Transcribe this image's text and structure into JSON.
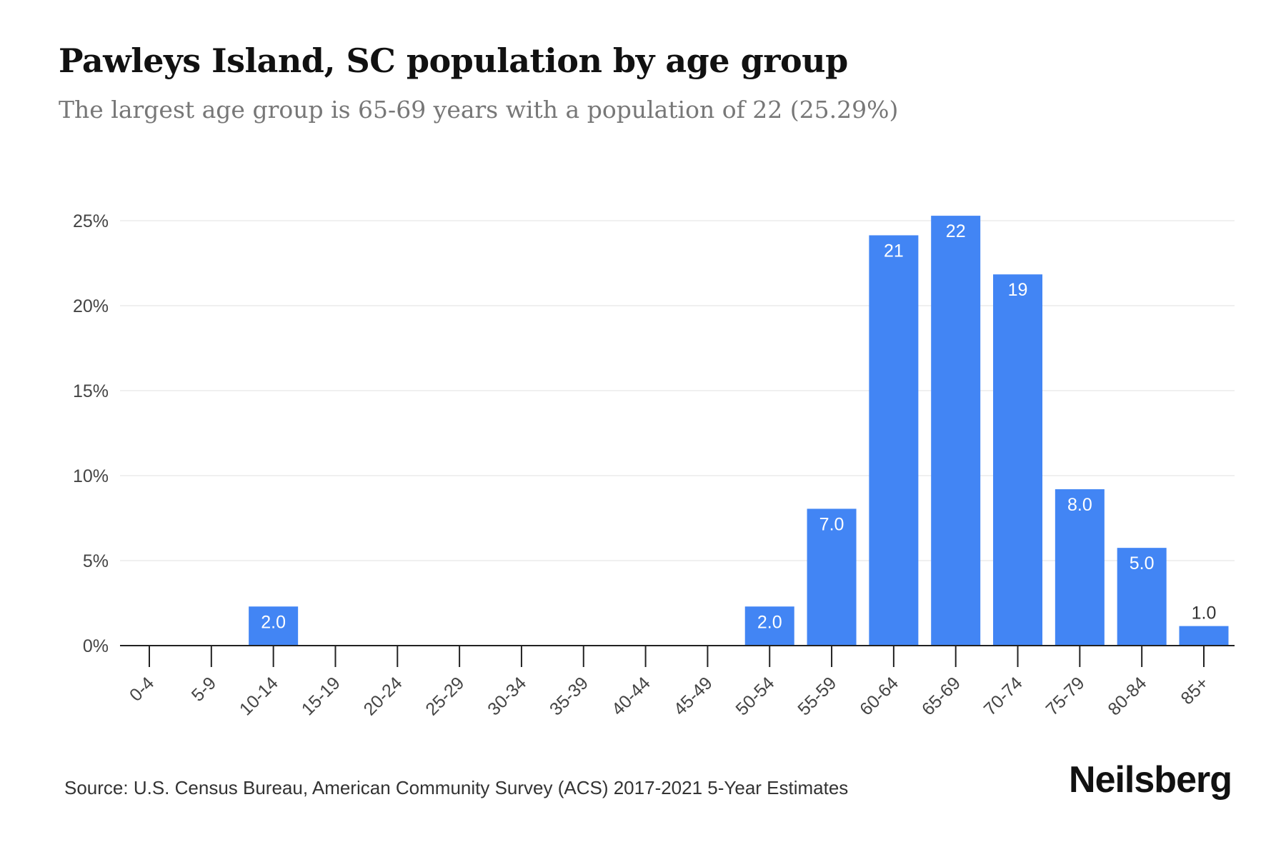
{
  "header": {
    "title": "Pawleys Island, SC population by age group",
    "subtitle": "The largest age group is 65-69 years with a population of 22 (25.29%)"
  },
  "footer": {
    "source": "Source: U.S. Census Bureau, American Community Survey (ACS) 2017-2021 5-Year Estimates",
    "brand": "Neilsberg"
  },
  "colors": {
    "bar": "#4285f4",
    "grid": "#ececec",
    "axis": "#222222",
    "bar_label_inside": "#ffffff",
    "bar_label_outside": "#333333",
    "tick_label": "#444444"
  },
  "chart_data": {
    "type": "bar",
    "categories": [
      "0-4",
      "5-9",
      "10-14",
      "15-19",
      "20-24",
      "25-29",
      "30-34",
      "35-39",
      "40-44",
      "45-49",
      "50-54",
      "55-59",
      "60-64",
      "65-69",
      "70-74",
      "75-79",
      "80-84",
      "85+"
    ],
    "values_percent": [
      0,
      0,
      2.3,
      0,
      0,
      0,
      0,
      0,
      0,
      0,
      2.3,
      8.05,
      24.14,
      25.29,
      21.84,
      9.2,
      5.75,
      1.15
    ],
    "data_labels": [
      "",
      "",
      "2.0",
      "",
      "",
      "",
      "",
      "",
      "",
      "",
      "2.0",
      "7.0",
      "21",
      "22",
      "19",
      "8.0",
      "5.0",
      "1.0"
    ],
    "y_ticks": [
      0,
      5,
      10,
      15,
      20,
      25
    ],
    "y_tick_labels": [
      "0%",
      "5%",
      "10%",
      "15%",
      "20%",
      "25%"
    ],
    "ylim": [
      0,
      25
    ],
    "xlabel": "",
    "ylabel": "",
    "grid": true,
    "legend": "none"
  }
}
